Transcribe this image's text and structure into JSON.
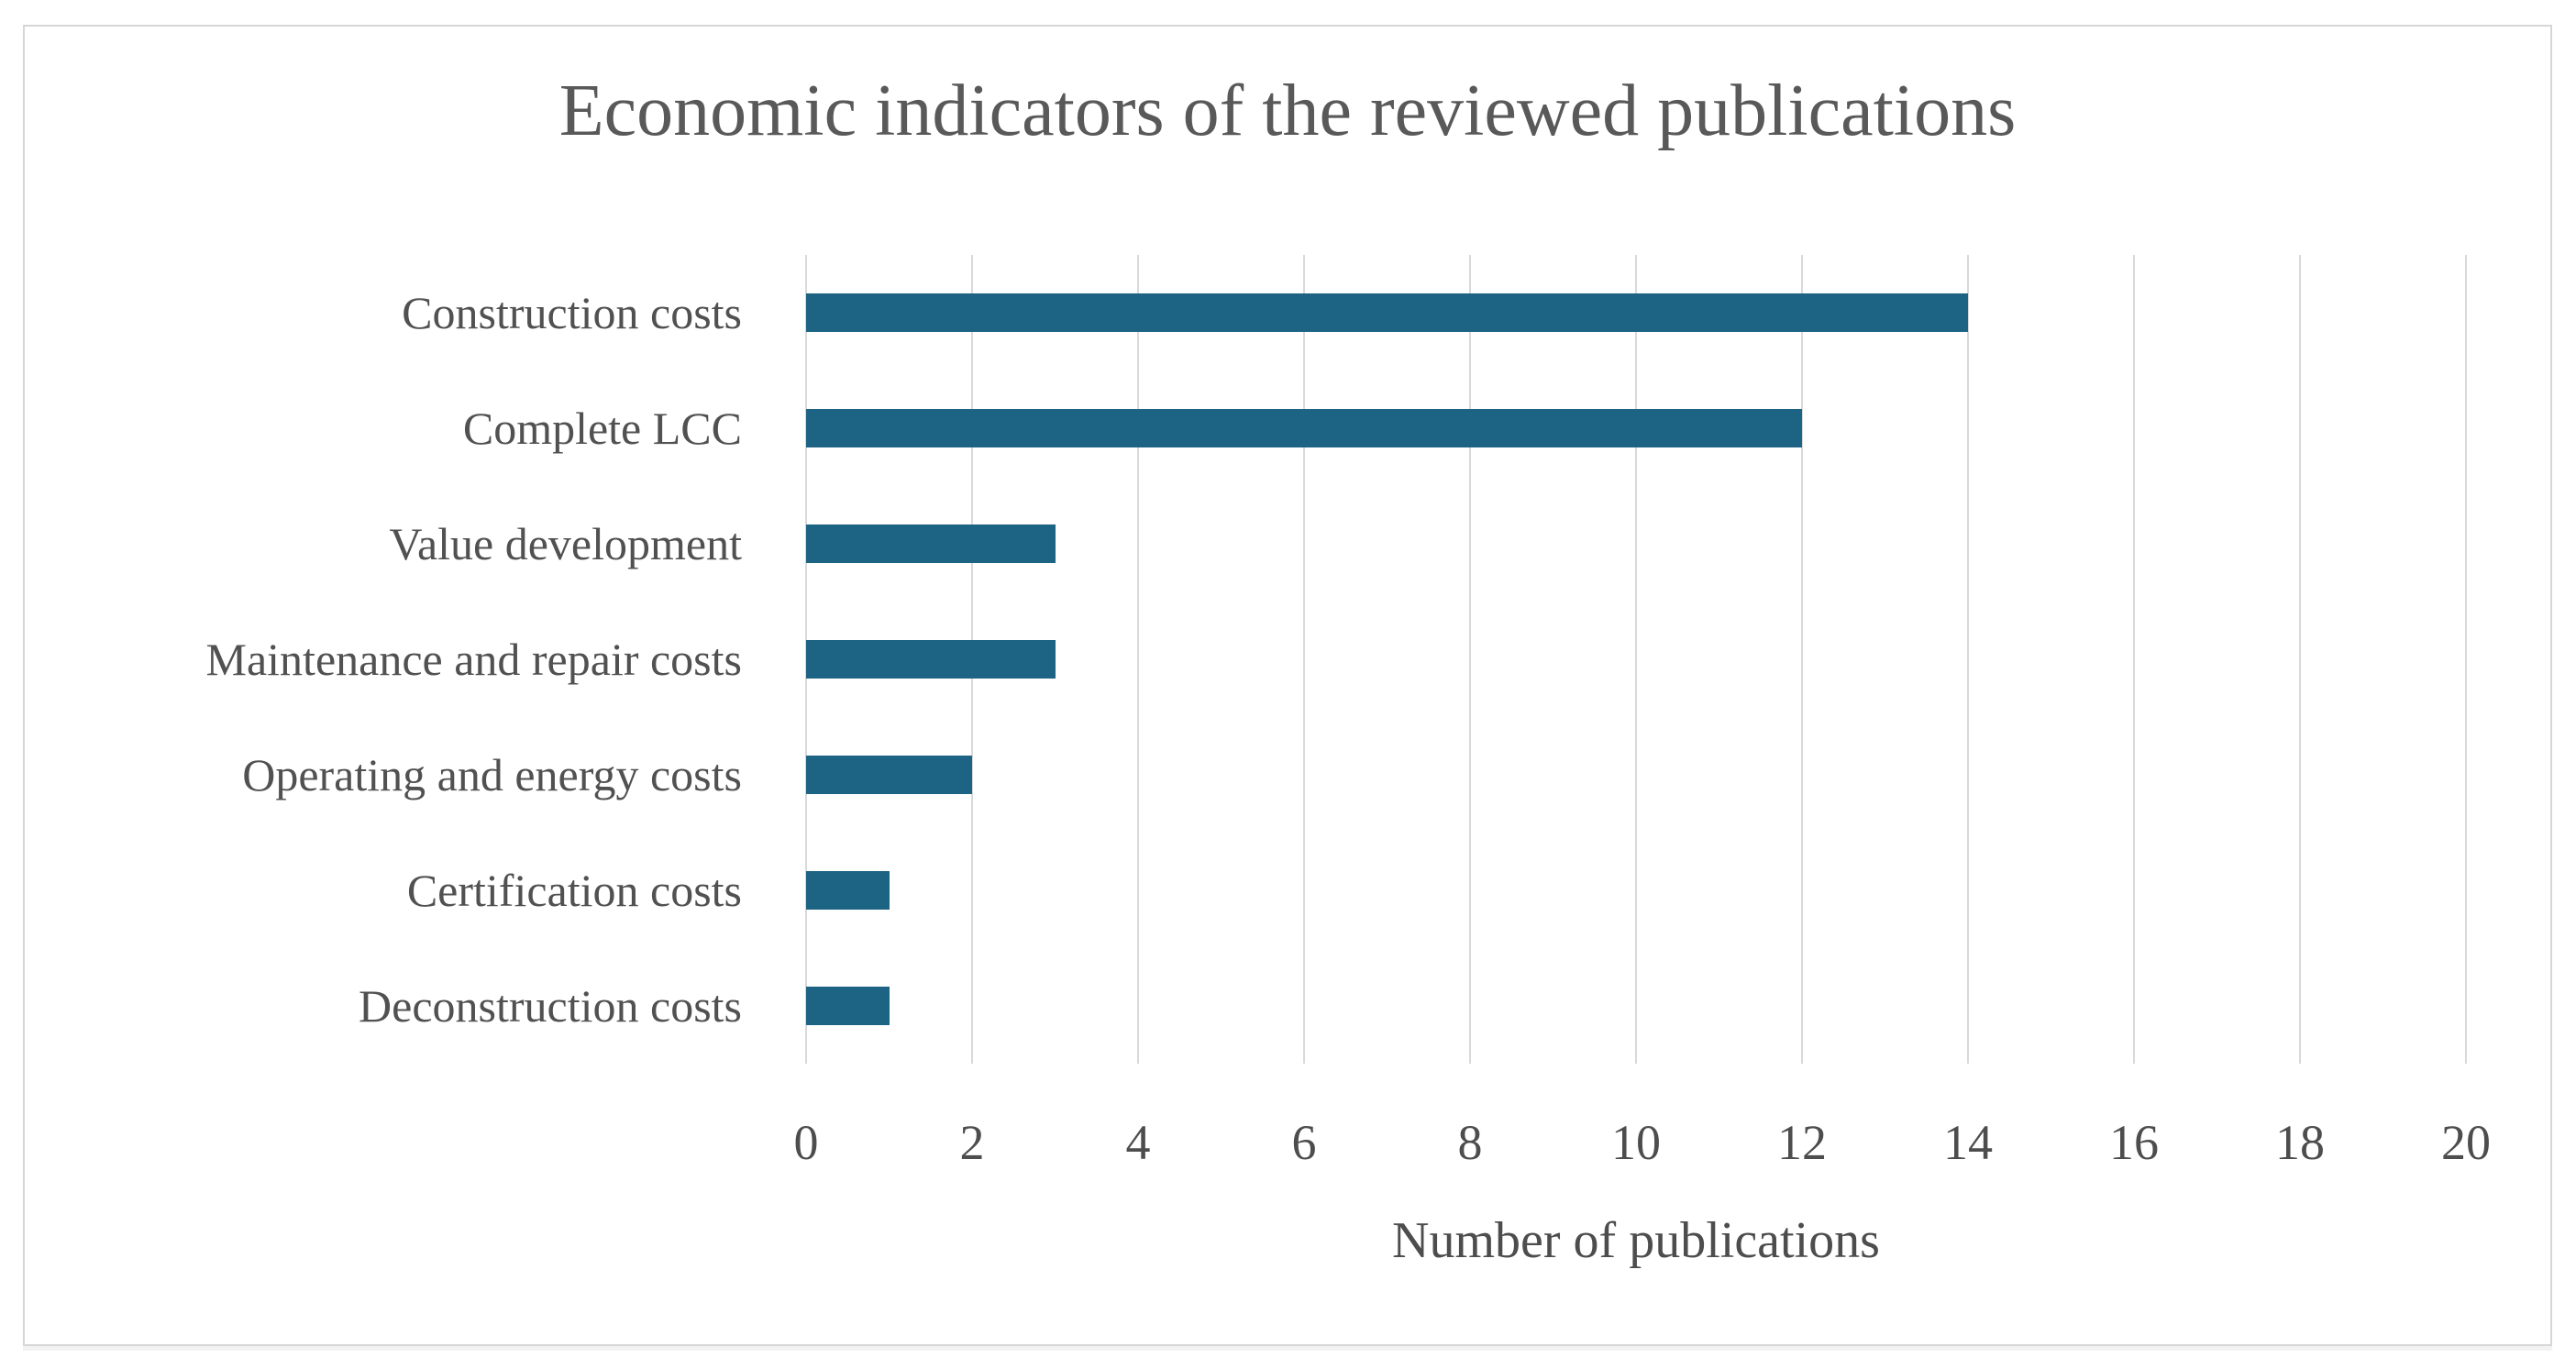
{
  "chart_data": {
    "type": "bar",
    "orientation": "horizontal",
    "title": "Economic indicators of the reviewed publications",
    "xlabel": "Number of publications",
    "categories": [
      "Construction costs",
      "Complete LCC",
      "Value development",
      "Maintenance and repair costs",
      "Operating and energy costs",
      "Certification costs",
      "Deconstruction costs"
    ],
    "values": [
      14,
      12,
      3,
      3,
      2,
      1,
      1
    ],
    "xlim": [
      0,
      20
    ],
    "xticks": [
      0,
      2,
      4,
      6,
      8,
      10,
      12,
      14,
      16,
      18,
      20
    ],
    "grid": "vertical-gridlines",
    "legend": "none",
    "bar_color": "#1d6383",
    "gridline_color": "#d9d9d9",
    "title_color": "#595959",
    "label_color": "#515151",
    "tick_color": "#4d4d4d",
    "frame_border_color": "#d6d6d6",
    "background_color": "#ffffff"
  }
}
